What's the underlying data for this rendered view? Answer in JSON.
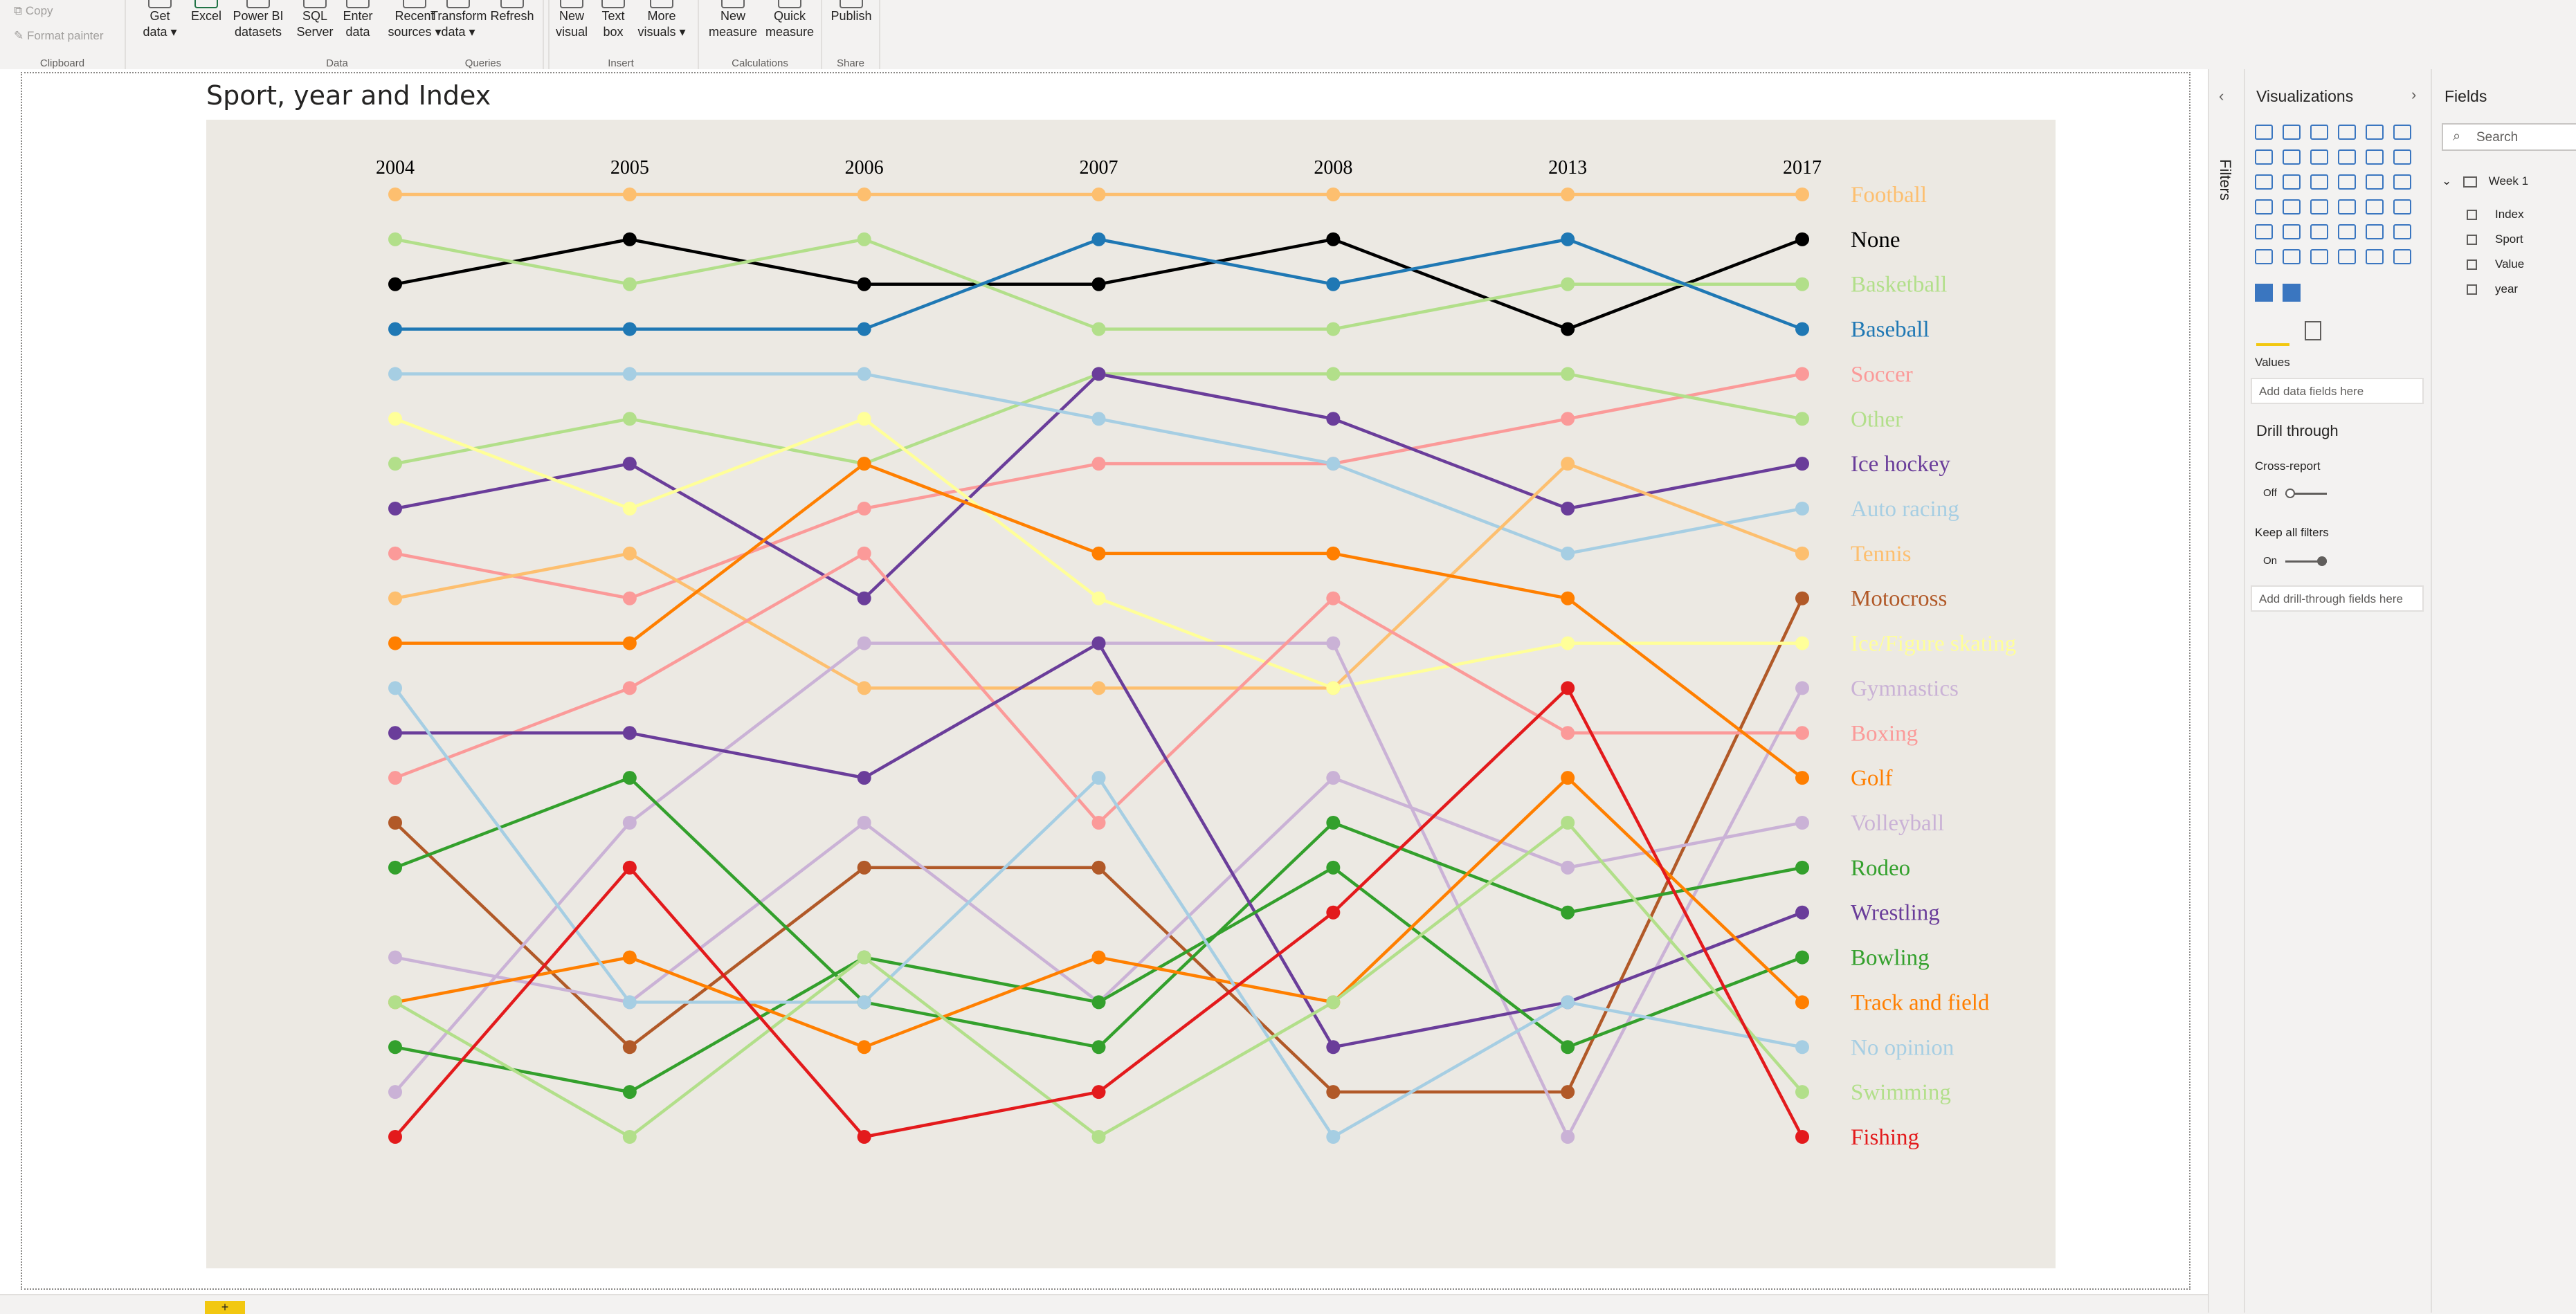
{
  "ribbon": {
    "clipboard": {
      "label": "Clipboard",
      "copy": "Copy",
      "format_painter": "Format painter"
    },
    "data": {
      "label": "Data",
      "get_data": "Get\ndata ▾",
      "excel": "Excel",
      "power_bi": "Power BI\ndatasets",
      "sql": "SQL\nServer",
      "enter": "Enter\ndata",
      "recent": "Recent\nsources ▾"
    },
    "queries": {
      "label": "Queries",
      "transform": "Transform\ndata ▾",
      "refresh": "Refresh"
    },
    "insert": {
      "label": "Insert",
      "new_visual": "New\nvisual",
      "text_box": "Text\nbox",
      "more_visuals": "More\nvisuals ▾"
    },
    "calculations": {
      "label": "Calculations",
      "new_measure": "New\nmeasure",
      "quick_measure": "Quick\nmeasure"
    },
    "share": {
      "label": "Share",
      "publish": "Publish"
    }
  },
  "visual": {
    "title": "Sport, year and Index"
  },
  "filters": {
    "label": "Filters"
  },
  "visualizations": {
    "title": "Visualizations",
    "values_label": "Values",
    "values_placeholder": "Add data fields here",
    "drill_through": "Drill through",
    "cross_report": "Cross-report",
    "cross_report_state": "Off",
    "keep_filters": "Keep all filters",
    "keep_filters_state": "On",
    "drill_placeholder": "Add drill-through fields here"
  },
  "fields": {
    "title": "Fields",
    "search_placeholder": "Search",
    "table": "Week 1",
    "items": [
      "Index",
      "Sport",
      "Value",
      "year"
    ]
  },
  "tabs": {
    "add": "+"
  },
  "colors": {
    "background": "#ece9e3",
    "accent": "#f2c811"
  },
  "chart_data": {
    "type": "line",
    "x": [
      "2004",
      "2005",
      "2006",
      "2007",
      "2008",
      "2013",
      "2017"
    ],
    "ylim": [
      1,
      22
    ],
    "y_inverted": true,
    "grid": false,
    "legend": "right",
    "series": [
      {
        "name": "Football",
        "color": "#fdbf6f",
        "values": [
          1,
          1,
          1,
          1,
          1,
          1,
          1
        ]
      },
      {
        "name": "None",
        "color": "#000000",
        "values": [
          3,
          2,
          3,
          3,
          2,
          4,
          2
        ]
      },
      {
        "name": "Basketball",
        "color": "#b2df8a",
        "values": [
          2,
          3,
          2,
          4,
          4,
          3,
          3
        ]
      },
      {
        "name": "Baseball",
        "color": "#1f78b4",
        "values": [
          4,
          4,
          4,
          2,
          3,
          2,
          4
        ]
      },
      {
        "name": "Soccer",
        "color": "#fb9a99",
        "values": [
          9,
          10,
          8,
          7,
          7,
          6,
          5
        ]
      },
      {
        "name": "Other",
        "color": "#b2df8a",
        "values": [
          7,
          6,
          7,
          5,
          5,
          5,
          6
        ]
      },
      {
        "name": "Ice hockey",
        "color": "#6a3d9a",
        "values": [
          8,
          7,
          10,
          5,
          6,
          8,
          7
        ]
      },
      {
        "name": "Auto racing",
        "color": "#a6cee3",
        "values": [
          5,
          5,
          5,
          6,
          7,
          9,
          8
        ]
      },
      {
        "name": "Tennis",
        "color": "#fdbf6f",
        "values": [
          10,
          9,
          12,
          12,
          12,
          7,
          9
        ]
      },
      {
        "name": "Motocross",
        "color": "#b15928",
        "values": [
          15,
          20,
          16,
          16,
          21,
          21,
          10
        ]
      },
      {
        "name": "Ice/Figure skating",
        "color": "#ffff99",
        "values": [
          6,
          8,
          6,
          10,
          12,
          11,
          11
        ]
      },
      {
        "name": "Gymnastics",
        "color": "#cab2d6",
        "values": [
          21,
          15,
          11,
          11,
          11,
          22,
          12
        ]
      },
      {
        "name": "Boxing",
        "color": "#fb9a99",
        "values": [
          14,
          12,
          9,
          15,
          10,
          13,
          13
        ]
      },
      {
        "name": "Golf",
        "color": "#ff7f00",
        "values": [
          11,
          11,
          7,
          9,
          9,
          10,
          14
        ]
      },
      {
        "name": "Volleyball",
        "color": "#cab2d6",
        "values": [
          18,
          19,
          15,
          19,
          14,
          16,
          15
        ]
      },
      {
        "name": "Rodeo",
        "color": "#33a02c",
        "values": [
          16,
          14,
          19,
          20,
          15,
          17,
          16
        ]
      },
      {
        "name": "Wrestling",
        "color": "#6a3d9a",
        "values": [
          13,
          13,
          14,
          11,
          20,
          19,
          17
        ]
      },
      {
        "name": "Bowling",
        "color": "#33a02c",
        "values": [
          20,
          21,
          18,
          19,
          16,
          20,
          18
        ]
      },
      {
        "name": "Track and field",
        "color": "#ff7f00",
        "values": [
          19,
          18,
          20,
          18,
          19,
          14,
          19
        ]
      },
      {
        "name": "No opinion",
        "color": "#a6cee3",
        "values": [
          12,
          19,
          19,
          14,
          22,
          19,
          20
        ]
      },
      {
        "name": "Swimming",
        "color": "#b2df8a",
        "values": [
          19,
          22,
          18,
          22,
          19,
          15,
          21
        ]
      },
      {
        "name": "Fishing",
        "color": "#e31a1c",
        "values": [
          22,
          16,
          22,
          21,
          17,
          12,
          22
        ]
      }
    ]
  }
}
